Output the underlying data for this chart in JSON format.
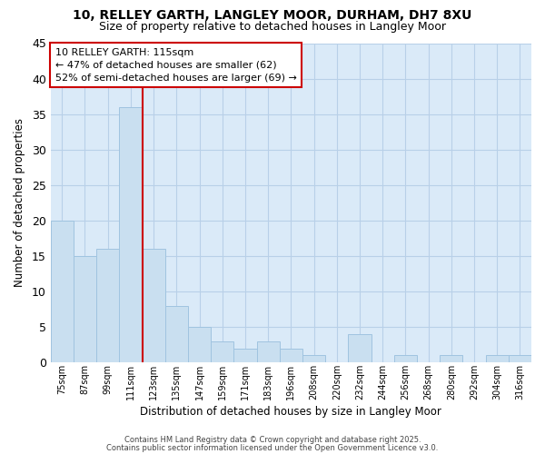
{
  "title_line1": "10, RELLEY GARTH, LANGLEY MOOR, DURHAM, DH7 8XU",
  "title_line2": "Size of property relative to detached houses in Langley Moor",
  "xlabel": "Distribution of detached houses by size in Langley Moor",
  "ylabel": "Number of detached properties",
  "categories": [
    "75sqm",
    "87sqm",
    "99sqm",
    "111sqm",
    "123sqm",
    "135sqm",
    "147sqm",
    "159sqm",
    "171sqm",
    "183sqm",
    "196sqm",
    "208sqm",
    "220sqm",
    "232sqm",
    "244sqm",
    "256sqm",
    "268sqm",
    "280sqm",
    "292sqm",
    "304sqm",
    "316sqm"
  ],
  "values": [
    20,
    15,
    16,
    36,
    16,
    8,
    5,
    3,
    2,
    3,
    2,
    1,
    0,
    4,
    0,
    1,
    0,
    1,
    0,
    1,
    1
  ],
  "bar_color": "#c9dff0",
  "bar_edge_color": "#a0c4e0",
  "grid_color": "#b8d0e8",
  "plot_bg_color": "#daeaf8",
  "fig_bg_color": "#ffffff",
  "vline_x": 3.5,
  "vline_color": "#cc0000",
  "annotation_text": "10 RELLEY GARTH: 115sqm\n← 47% of detached houses are smaller (62)\n52% of semi-detached houses are larger (69) →",
  "annotation_box_color": "#ffffff",
  "annotation_box_edge": "#cc0000",
  "ylim": [
    0,
    45
  ],
  "yticks": [
    0,
    5,
    10,
    15,
    20,
    25,
    30,
    35,
    40,
    45
  ],
  "footer_line1": "Contains HM Land Registry data © Crown copyright and database right 2025.",
  "footer_line2": "Contains public sector information licensed under the Open Government Licence v3.0."
}
